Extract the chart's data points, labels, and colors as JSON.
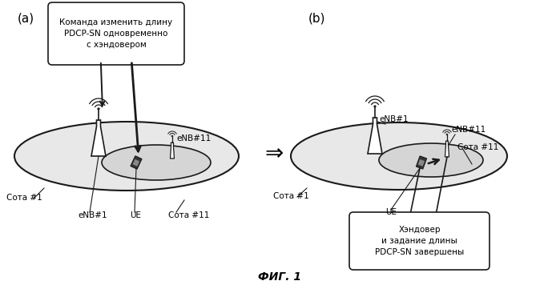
{
  "title": "ФИГ. 1",
  "label_a": "(a)",
  "label_b": "(b)",
  "callout_a": "Команда изменить длину\nPDCP-SN одновременно\nс хэндовером",
  "callout_b": "Хэндовер\nи задание длины\nPDCP-SN завершены",
  "arrow_symbol": "⇒",
  "labels_a": {
    "cell1": "Сота #1",
    "enb1": "eNB#1",
    "ue": "UE",
    "cell11": "Сота #11",
    "enb11": "eNB#11"
  },
  "labels_b": {
    "cell1": "Сота #1",
    "ue": "UE",
    "cell11": "Сота #11",
    "enb11": "eNB#11",
    "enb1": "eNB#1"
  },
  "bg_color": "#ffffff",
  "line_color": "#1a1a1a",
  "ellipse_color_outer": "#e8e8e8",
  "ellipse_color_inner": "#d5d5d5",
  "text_color": "#000000"
}
